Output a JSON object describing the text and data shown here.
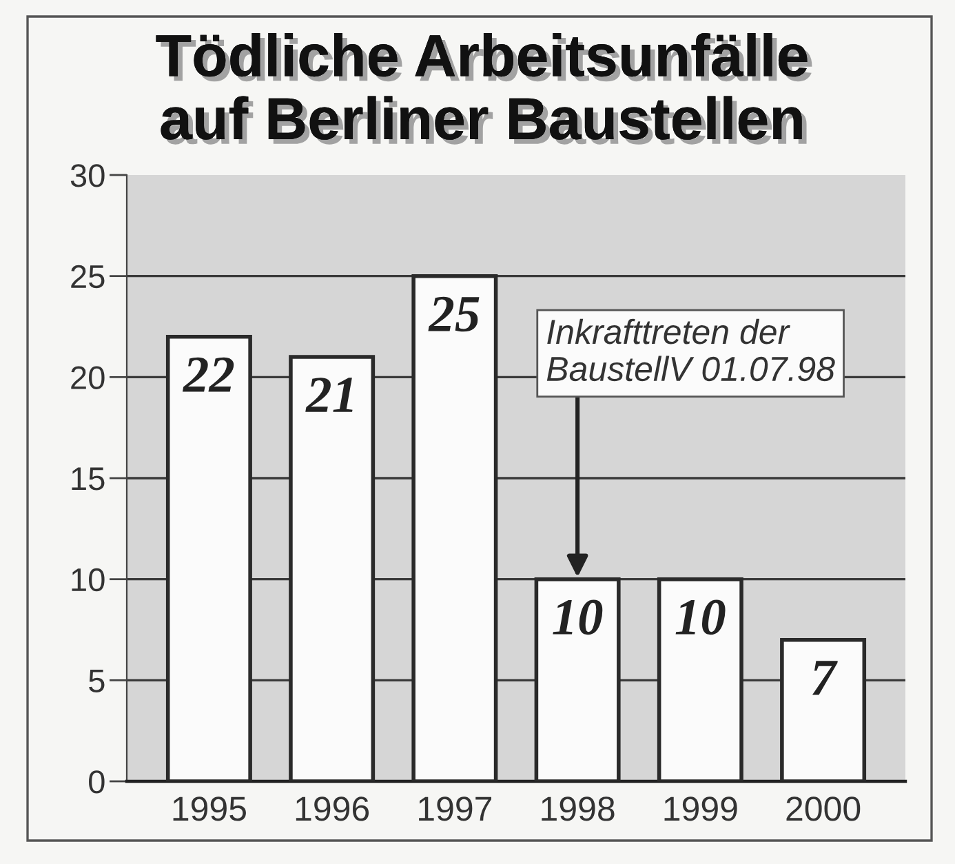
{
  "chart_data": {
    "type": "bar",
    "title": "Tödliche Arbeitsunfälle\nauf Berliner Baustellen",
    "categories": [
      "1995",
      "1996",
      "1997",
      "1998",
      "1999",
      "2000"
    ],
    "values": [
      22,
      21,
      25,
      10,
      10,
      7
    ],
    "color": "#fbfbfb",
    "ylim": [
      0,
      30
    ],
    "yticks": [
      0,
      5,
      10,
      15,
      20,
      25,
      30
    ],
    "grid": "y",
    "data_labels": true,
    "annotations": [
      {
        "text": "Inkrafttreten der\nBaustellV 01.07.98",
        "x": "1998",
        "y": 10
      }
    ]
  }
}
